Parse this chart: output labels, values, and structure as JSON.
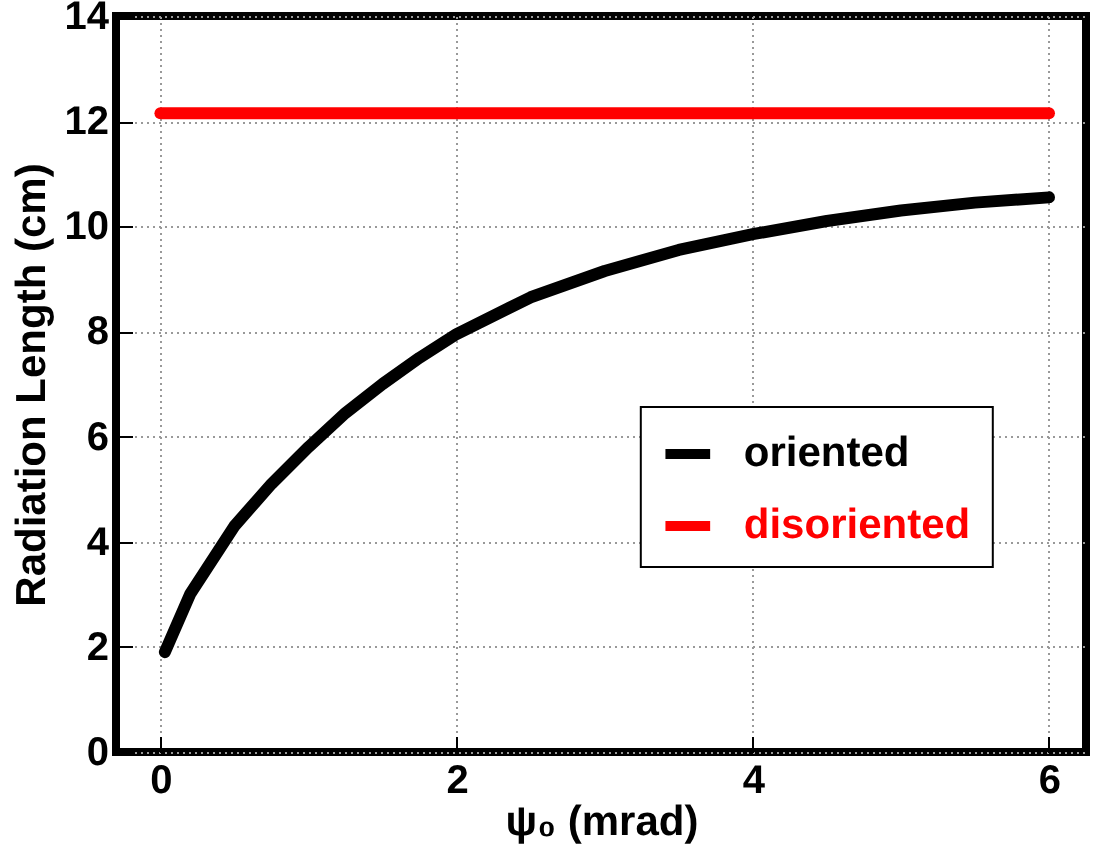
{
  "chart_data": {
    "type": "line",
    "xlabel": "ψ₀ (mrad)",
    "ylabel": "Radiation Length (cm)",
    "xlim": [
      -0.3,
      6.25
    ],
    "ylim": [
      0,
      14
    ],
    "xticks": [
      0,
      2,
      4,
      6
    ],
    "yticks": [
      0,
      2,
      4,
      6,
      8,
      10,
      12,
      14
    ],
    "grid": true,
    "legend": "right",
    "series": [
      {
        "name": "oriented",
        "color": "#000000",
        "x": [
          0.03,
          0.2,
          0.5,
          0.75,
          1,
          1.25,
          1.5,
          1.75,
          2,
          2.5,
          3,
          3.5,
          4,
          4.5,
          5,
          5.5,
          6
        ],
        "values": [
          1.9,
          3.0,
          4.3,
          5.1,
          5.8,
          6.45,
          7.0,
          7.5,
          7.95,
          8.65,
          9.15,
          9.55,
          9.85,
          10.1,
          10.3,
          10.45,
          10.55
        ]
      },
      {
        "name": "disoriented",
        "color": "#ff0000",
        "x": [
          0,
          6
        ],
        "values": [
          12.15,
          12.15
        ]
      }
    ]
  }
}
